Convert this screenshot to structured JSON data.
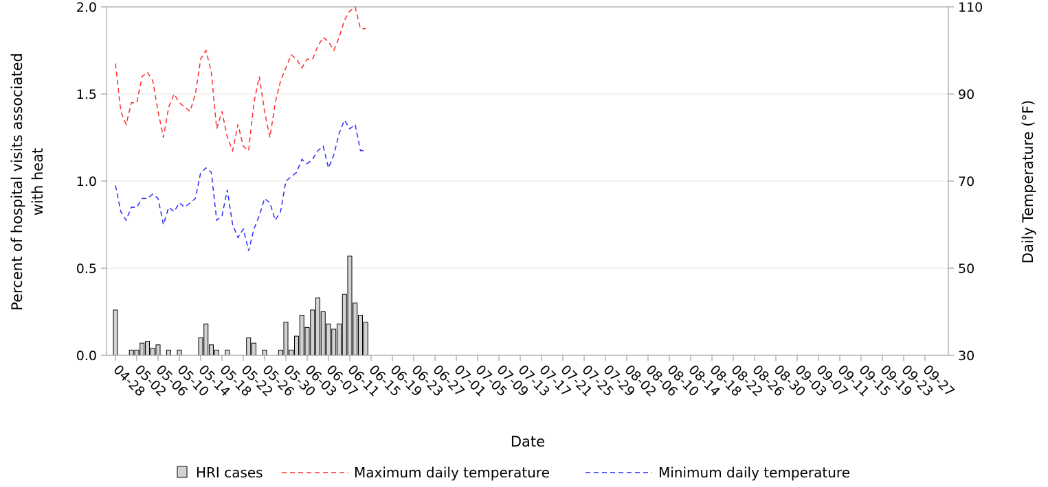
{
  "chart_data": {
    "type": "bar",
    "xlabel": "Date",
    "ylabel_lines": [
      "Percent of hospital visits associated",
      "with heat"
    ],
    "y2label": "Daily Temperature (°F)",
    "ylim": [
      0,
      2.0
    ],
    "yticks": [
      "0.0",
      "0.5",
      "1.0",
      "1.5",
      "2.0"
    ],
    "y2lim": [
      30,
      110
    ],
    "y2ticks": [
      "30",
      "50",
      "70",
      "90",
      "110"
    ],
    "grid": true,
    "legend_position": "bottom",
    "colors": {
      "bar_fill": "#d3d3d3",
      "tmax": "#ff2a2a",
      "tmin": "#2a2aff"
    },
    "x_tick_labels": [
      "04-28",
      "05-02",
      "05-06",
      "05-10",
      "05-14",
      "05-18",
      "05-22",
      "05-26",
      "05-30",
      "06-03",
      "06-07",
      "06-11",
      "06-15",
      "06-19",
      "06-23",
      "06-27",
      "07-01",
      "07-05",
      "07-09",
      "07-13",
      "07-17",
      "07-21",
      "07-25",
      "07-29",
      "08-02",
      "08-06",
      "08-10",
      "08-14",
      "08-18",
      "08-22",
      "08-26",
      "08-30",
      "09-03",
      "09-07",
      "09-11",
      "09-15",
      "09-19",
      "09-23",
      "09-27"
    ],
    "series": [
      {
        "name": "HRI cases",
        "kind": "bar",
        "values": [
          0.26,
          0,
          0,
          0.03,
          0.03,
          0.07,
          0.08,
          0.04,
          0.06,
          0,
          0.03,
          0,
          0.03,
          0,
          0,
          0,
          0.1,
          0.18,
          0.06,
          0.03,
          0,
          0.03,
          0,
          0,
          0,
          0.1,
          0.07,
          0,
          0.03,
          0,
          0,
          0.03,
          0.19,
          0.03,
          0.11,
          0.23,
          0.16,
          0.26,
          0.33,
          0.25,
          0.18,
          0.15,
          0.18,
          0.35,
          0.57,
          0.3,
          0.23,
          0.19
        ]
      },
      {
        "name": "Maximum daily temperature",
        "kind": "line",
        "axis": "y2",
        "values": [
          97,
          86,
          83,
          88,
          88,
          94,
          95,
          93,
          86,
          80,
          87,
          90,
          88,
          87,
          86,
          90,
          98,
          100,
          95,
          82,
          86,
          80,
          77,
          83,
          78,
          77,
          88,
          94,
          86,
          80,
          88,
          93,
          96,
          99,
          98,
          96,
          98,
          98,
          101,
          103,
          102,
          100,
          103,
          107,
          109,
          110,
          105,
          105
        ]
      },
      {
        "name": "Minimum daily temperature",
        "kind": "line",
        "axis": "y2",
        "values": [
          69,
          63,
          61,
          64,
          64,
          66,
          66,
          67,
          66,
          60,
          64,
          63,
          65,
          64,
          65,
          66,
          72,
          73,
          72,
          61,
          62,
          68,
          60,
          57,
          59,
          54,
          59,
          62,
          66,
          65,
          61,
          63,
          70,
          71,
          72,
          75,
          74,
          75,
          77,
          78,
          73,
          76,
          81,
          84,
          82,
          83,
          77,
          77
        ]
      }
    ]
  }
}
